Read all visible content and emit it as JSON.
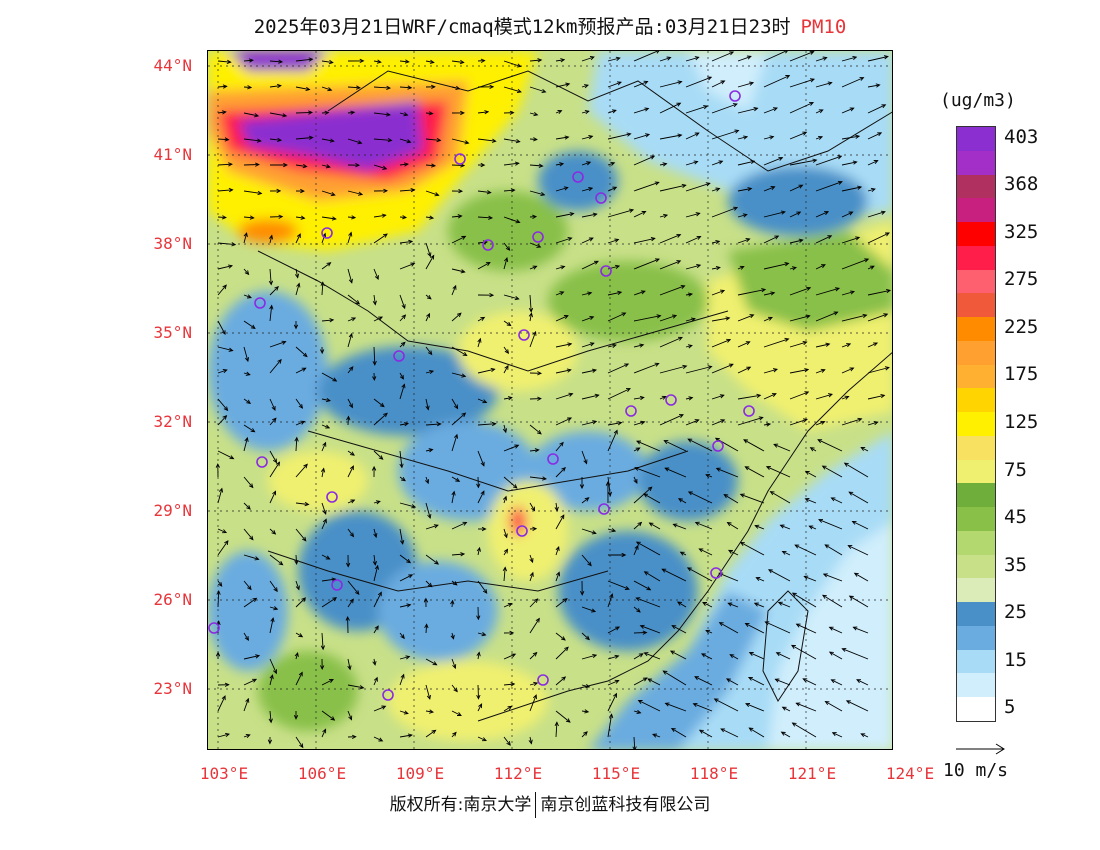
{
  "title": {
    "main": "2025年03月21日WRF/cmaq模式12km预报产品:03月21日23时",
    "pollutant": "PM10"
  },
  "axes": {
    "latitude_labels": [
      "44°N",
      "41°N",
      "38°N",
      "35°N",
      "32°N",
      "29°N",
      "26°N",
      "23°N"
    ],
    "longitude_labels": [
      "103°E",
      "106°E",
      "109°E",
      "112°E",
      "115°E",
      "118°E",
      "121°E",
      "124°E"
    ]
  },
  "legend": {
    "unit": "(ug/m3)",
    "bins": [
      {
        "label": "403",
        "color": "#8b2fd0"
      },
      {
        "label": "",
        "color": "#a42fc8"
      },
      {
        "label": "368",
        "color": "#b0305f"
      },
      {
        "label": "",
        "color": "#c8207f"
      },
      {
        "label": "325",
        "color": "#ff0000"
      },
      {
        "label": "",
        "color": "#ff1e4a"
      },
      {
        "label": "275",
        "color": "#ff6070"
      },
      {
        "label": "",
        "color": "#f05a3a"
      },
      {
        "label": "225",
        "color": "#ff8c00"
      },
      {
        "label": "",
        "color": "#ffa030"
      },
      {
        "label": "175",
        "color": "#ffb030"
      },
      {
        "label": "",
        "color": "#ffd400"
      },
      {
        "label": "125",
        "color": "#fff000"
      },
      {
        "label": "",
        "color": "#f8e060"
      },
      {
        "label": "75",
        "color": "#f0f070"
      },
      {
        "label": "",
        "color": "#6fae3a"
      },
      {
        "label": "45",
        "color": "#88c048"
      },
      {
        "label": "",
        "color": "#b4d870"
      },
      {
        "label": "35",
        "color": "#c8e088"
      },
      {
        "label": "",
        "color": "#dcecb8"
      },
      {
        "label": "25",
        "color": "#4a90c8"
      },
      {
        "label": "",
        "color": "#6aace0"
      },
      {
        "label": "15",
        "color": "#a8dcf6"
      },
      {
        "label": "",
        "color": "#d0eefc"
      },
      {
        "label": "5",
        "color": "#ffffff"
      }
    ]
  },
  "wind_key": {
    "label": "10 m/s"
  },
  "footer": {
    "left": "版权所有:南京大学",
    "right": "南京创蓝科技有限公司"
  },
  "colors": {
    "axis_label": "#e8353a",
    "city_marker": "#8a2be2"
  }
}
